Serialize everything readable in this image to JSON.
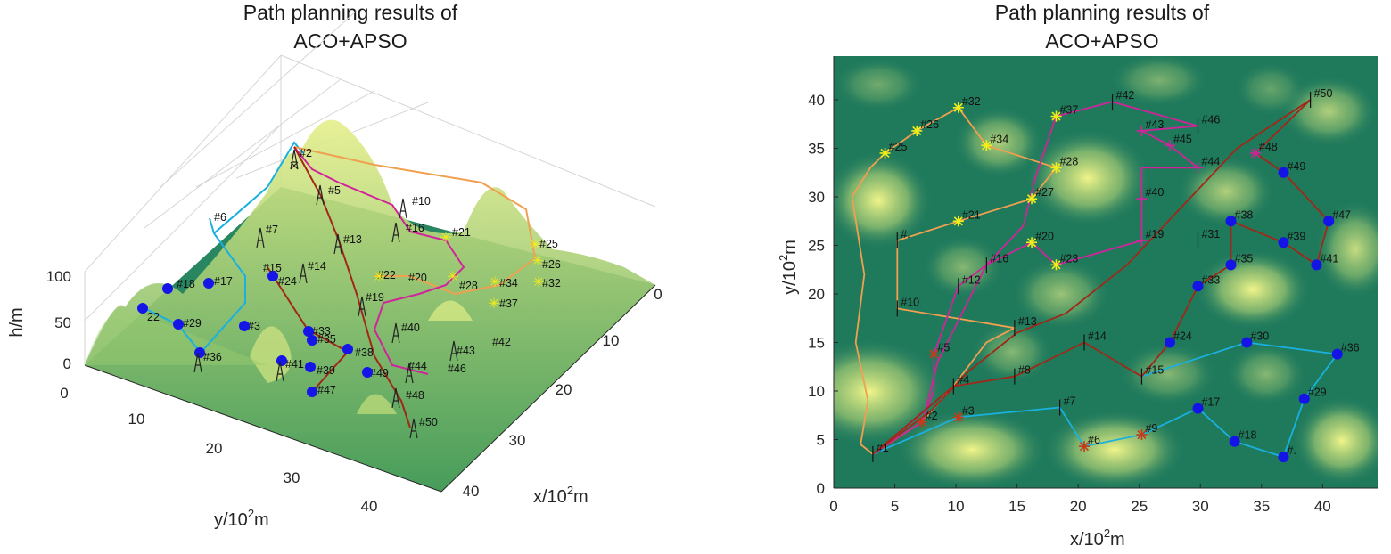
{
  "left_panel": {
    "title_line1": "Path planning results of",
    "title_line2": "ACO+APSO",
    "x_label_main": "x/10",
    "x_label_sup": "2",
    "x_label_unit": "m",
    "y_label_main": "y/10",
    "y_label_sup": "2",
    "y_label_unit": "m",
    "z_label": "h/m",
    "x_ticks": [
      "0",
      "10",
      "20",
      "30",
      "40"
    ],
    "y_ticks": [
      "0",
      "10",
      "20",
      "30",
      "40"
    ],
    "z_ticks": [
      "100",
      "50",
      "0"
    ]
  },
  "chart_data": {
    "type": "scatter",
    "title": "Path planning results of ACO+APSO",
    "xlabel": "x/10^2m",
    "ylabel": "y/10^2m",
    "xlim": [
      0,
      44.5
    ],
    "ylim": [
      0,
      44.5
    ],
    "x_ticks": [
      0,
      5,
      10,
      15,
      20,
      25,
      30,
      35,
      40
    ],
    "y_ticks": [
      0,
      5,
      10,
      15,
      20,
      25,
      30,
      35,
      40
    ],
    "x_tick_labels": [
      "0",
      "5",
      "10",
      "15",
      "20",
      "25",
      "30",
      "35",
      "40"
    ],
    "y_tick_labels": [
      "0",
      "5",
      "10",
      "15",
      "20",
      "25",
      "30",
      "35",
      "40"
    ],
    "nodes": [
      {
        "id": "#1",
        "x": 3.2,
        "y": 3.5,
        "marker": "tick"
      },
      {
        "id": "#2",
        "x": 7.2,
        "y": 6.8,
        "marker": "star-red"
      },
      {
        "id": "#3",
        "x": 10.2,
        "y": 7.3,
        "marker": "star-red"
      },
      {
        "id": "#4",
        "x": 9.8,
        "y": 10.5,
        "marker": "tick"
      },
      {
        "id": "#5",
        "x": 8.2,
        "y": 13.8,
        "marker": "star-red"
      },
      {
        "id": "#6",
        "x": 20.5,
        "y": 4.3,
        "marker": "star-red"
      },
      {
        "id": "#7",
        "x": 18.5,
        "y": 8.3,
        "marker": "tick"
      },
      {
        "id": "#8",
        "x": 14.8,
        "y": 11.5,
        "marker": "tick"
      },
      {
        "id": "#9",
        "x": 25.2,
        "y": 5.5,
        "marker": "star-red"
      },
      {
        "id": "#10",
        "x": 5.2,
        "y": 18.5,
        "marker": "tick"
      },
      {
        "id": "#12",
        "x": 10.2,
        "y": 20.8,
        "marker": "tick"
      },
      {
        "id": "#13",
        "x": 14.8,
        "y": 16.5,
        "marker": "tick"
      },
      {
        "id": "#14",
        "x": 20.5,
        "y": 15.0,
        "marker": "tick"
      },
      {
        "id": "#15",
        "x": 25.2,
        "y": 11.5,
        "marker": "tick"
      },
      {
        "id": "#16",
        "x": 12.5,
        "y": 23.0,
        "marker": "tick"
      },
      {
        "id": "#17",
        "x": 29.8,
        "y": 8.2,
        "marker": "blue"
      },
      {
        "id": "#18",
        "x": 32.8,
        "y": 4.8,
        "marker": "blue"
      },
      {
        "id": "#19",
        "x": 25.2,
        "y": 25.5,
        "marker": "plus-mag"
      },
      {
        "id": "#20",
        "x": 16.2,
        "y": 25.3,
        "marker": "star-yel"
      },
      {
        "id": "#21",
        "x": 10.2,
        "y": 27.5,
        "marker": "star-yel"
      },
      {
        "id": "#23",
        "x": 18.2,
        "y": 23.0,
        "marker": "star-yel"
      },
      {
        "id": "#24",
        "x": 27.5,
        "y": 15.0,
        "marker": "blue"
      },
      {
        "id": "#25",
        "x": 4.2,
        "y": 34.5,
        "marker": "star-yel"
      },
      {
        "id": "#26",
        "x": 6.8,
        "y": 36.8,
        "marker": "star-yel"
      },
      {
        "id": "#27",
        "x": 16.2,
        "y": 29.8,
        "marker": "star-yel"
      },
      {
        "id": "#28",
        "x": 18.2,
        "y": 33.0,
        "marker": "star-yel"
      },
      {
        "id": "#29",
        "x": 38.5,
        "y": 9.2,
        "marker": "blue"
      },
      {
        "id": "#30",
        "x": 33.8,
        "y": 15.0,
        "marker": "blue"
      },
      {
        "id": "#31",
        "x": 29.8,
        "y": 25.5,
        "marker": "tick"
      },
      {
        "id": "#32",
        "x": 10.2,
        "y": 39.2,
        "marker": "star-yel"
      },
      {
        "id": "#33",
        "x": 29.8,
        "y": 20.8,
        "marker": "blue"
      },
      {
        "id": "#34",
        "x": 12.5,
        "y": 35.3,
        "marker": "star-yel"
      },
      {
        "id": "#35",
        "x": 32.5,
        "y": 23.0,
        "marker": "blue"
      },
      {
        "id": "#36",
        "x": 41.2,
        "y": 13.8,
        "marker": "blue"
      },
      {
        "id": "#37",
        "x": 18.2,
        "y": 38.3,
        "marker": "star-yel"
      },
      {
        "id": "#38",
        "x": 32.5,
        "y": 27.5,
        "marker": "blue"
      },
      {
        "id": "#39",
        "x": 36.8,
        "y": 25.3,
        "marker": "blue"
      },
      {
        "id": "#40",
        "x": 25.2,
        "y": 29.8,
        "marker": "plus-mag"
      },
      {
        "id": "#41",
        "x": 39.5,
        "y": 23.0,
        "marker": "blue"
      },
      {
        "id": "#42",
        "x": 22.8,
        "y": 39.8,
        "marker": "tick"
      },
      {
        "id": "#43",
        "x": 25.2,
        "y": 36.8,
        "marker": "plus-mag"
      },
      {
        "id": "#44",
        "x": 29.8,
        "y": 33.0,
        "marker": "plus-mag"
      },
      {
        "id": "#45",
        "x": 27.5,
        "y": 35.3,
        "marker": "plus-mag"
      },
      {
        "id": "#46",
        "x": 29.8,
        "y": 37.3,
        "marker": "tick"
      },
      {
        "id": "#47",
        "x": 40.5,
        "y": 27.5,
        "marker": "blue"
      },
      {
        "id": "#48",
        "x": 34.5,
        "y": 34.5,
        "marker": "star-mag"
      },
      {
        "id": "#49",
        "x": 36.8,
        "y": 32.5,
        "marker": "blue"
      },
      {
        "id": "#50",
        "x": 39.0,
        "y": 40.0,
        "marker": "tick"
      },
      {
        "id": "#.",
        "x": 36.8,
        "y": 3.2,
        "marker": "blue"
      },
      {
        "id": "#.",
        "x": 5.2,
        "y": 25.5,
        "marker": "tick"
      }
    ],
    "routes": [
      {
        "name": "cyan",
        "color": "#1ab0e0",
        "points": [
          [
            3.2,
            3.5
          ],
          [
            10.2,
            7.3
          ],
          [
            18.5,
            8.3
          ],
          [
            20.5,
            4.3
          ],
          [
            25.2,
            5.5
          ],
          [
            29.8,
            8.2
          ],
          [
            32.8,
            4.8
          ],
          [
            36.8,
            3.2
          ],
          [
            38.5,
            9.2
          ],
          [
            41.2,
            13.8
          ],
          [
            33.8,
            15.0
          ],
          [
            25.2,
            11.5
          ]
        ]
      },
      {
        "name": "orange",
        "color": "#f0a050",
        "points": [
          [
            3.2,
            3.5
          ],
          [
            2.2,
            4.5
          ],
          [
            2.8,
            9
          ],
          [
            1.8,
            15
          ],
          [
            2.5,
            22
          ],
          [
            1.5,
            30
          ],
          [
            3,
            33
          ],
          [
            4.2,
            34.5
          ],
          [
            6.8,
            36.8
          ],
          [
            10.2,
            39.2
          ],
          [
            12.5,
            35.3
          ],
          [
            18.2,
            33.0
          ],
          [
            16.2,
            29.8
          ],
          [
            10.2,
            27.5
          ],
          [
            5.2,
            25.5
          ],
          [
            5.2,
            18.5
          ],
          [
            14.8,
            16.5
          ],
          [
            12.5,
            15
          ],
          [
            9.8,
            10.5
          ],
          [
            7.2,
            6.8
          ],
          [
            3.2,
            3.5
          ]
        ]
      },
      {
        "name": "magenta",
        "color": "#d0249a",
        "points": [
          [
            3.2,
            3.5
          ],
          [
            7.2,
            6.8
          ],
          [
            8.2,
            10
          ],
          [
            8.2,
            13.8
          ],
          [
            10.2,
            20.8
          ],
          [
            12.5,
            23.0
          ],
          [
            16.2,
            25.3
          ],
          [
            18.2,
            23.0
          ],
          [
            25.2,
            25.5
          ],
          [
            25.2,
            29.8
          ],
          [
            25.2,
            33
          ],
          [
            29.8,
            33.0
          ],
          [
            27.5,
            35.3
          ],
          [
            25.2,
            36.8
          ],
          [
            29.8,
            37.3
          ],
          [
            22.8,
            39.8
          ],
          [
            18.2,
            38.3
          ],
          [
            16.5,
            32
          ],
          [
            15.5,
            27
          ],
          [
            12.5,
            23
          ],
          [
            10.5,
            18
          ],
          [
            8.5,
            13
          ],
          [
            7.5,
            8
          ],
          [
            3.2,
            3.5
          ]
        ]
      },
      {
        "name": "darkred",
        "color": "#a02818",
        "points": [
          [
            3.2,
            3.5
          ],
          [
            9.8,
            10.5
          ],
          [
            14.8,
            11.5
          ],
          [
            20.5,
            15.0
          ],
          [
            25.2,
            11.5
          ],
          [
            27.5,
            15.0
          ],
          [
            29.8,
            20.8
          ],
          [
            32.5,
            23.0
          ],
          [
            32.5,
            27.5
          ],
          [
            36.8,
            25.3
          ],
          [
            39.5,
            23.0
          ],
          [
            40.5,
            27.5
          ],
          [
            36.8,
            32.5
          ],
          [
            34.5,
            34.5
          ],
          [
            39.0,
            40.0
          ],
          [
            33,
            35
          ],
          [
            28.5,
            29
          ],
          [
            24,
            23
          ],
          [
            19,
            18
          ],
          [
            15,
            16
          ],
          [
            11,
            12
          ],
          [
            8,
            8
          ],
          [
            3.2,
            3.5
          ]
        ]
      }
    ]
  }
}
